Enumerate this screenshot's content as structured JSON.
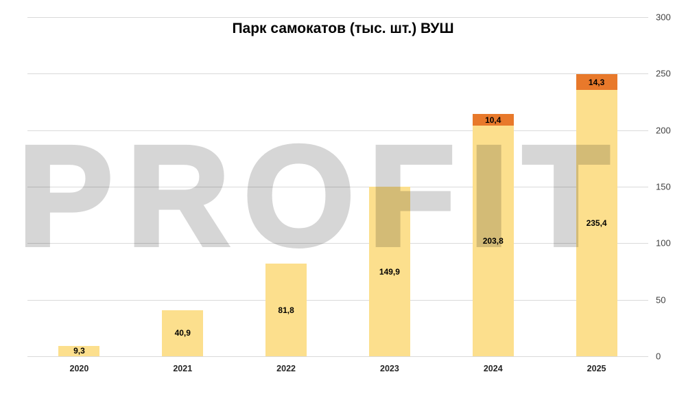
{
  "title": "Парк самокатов (тыс. шт.) ВУШ",
  "watermark": "PROFIT",
  "colors": {
    "primary_bar": "#fcdf8d",
    "secondary_bar": "#e8792b",
    "gridline": "#d9d9d9",
    "watermark": "#d6d6d6",
    "label_text": "#000000"
  },
  "chart_data": {
    "type": "bar",
    "stacked": true,
    "title": "Парк самокатов (тыс. шт.) ВУШ",
    "categories": [
      "2020",
      "2021",
      "2022",
      "2023",
      "2024",
      "2025"
    ],
    "series": [
      {
        "name": "base",
        "color": "#fcdf8d",
        "values": [
          9.3,
          40.9,
          81.8,
          149.9,
          203.8,
          235.4
        ],
        "labels": [
          "9,3",
          "40,9",
          "81,8",
          "149,9",
          "203,8",
          "235,4"
        ]
      },
      {
        "name": "increment",
        "color": "#e8792b",
        "values": [
          null,
          null,
          null,
          null,
          10.4,
          14.3
        ],
        "labels": [
          "",
          "",
          "",
          "",
          "10,4",
          "14,3"
        ]
      }
    ],
    "xlabel": "",
    "ylabel": "",
    "ylim": [
      0,
      300
    ],
    "yticks": [
      0,
      50,
      100,
      150,
      200,
      250,
      300
    ],
    "grid": true,
    "legend": false,
    "y_axis_side": "right"
  }
}
